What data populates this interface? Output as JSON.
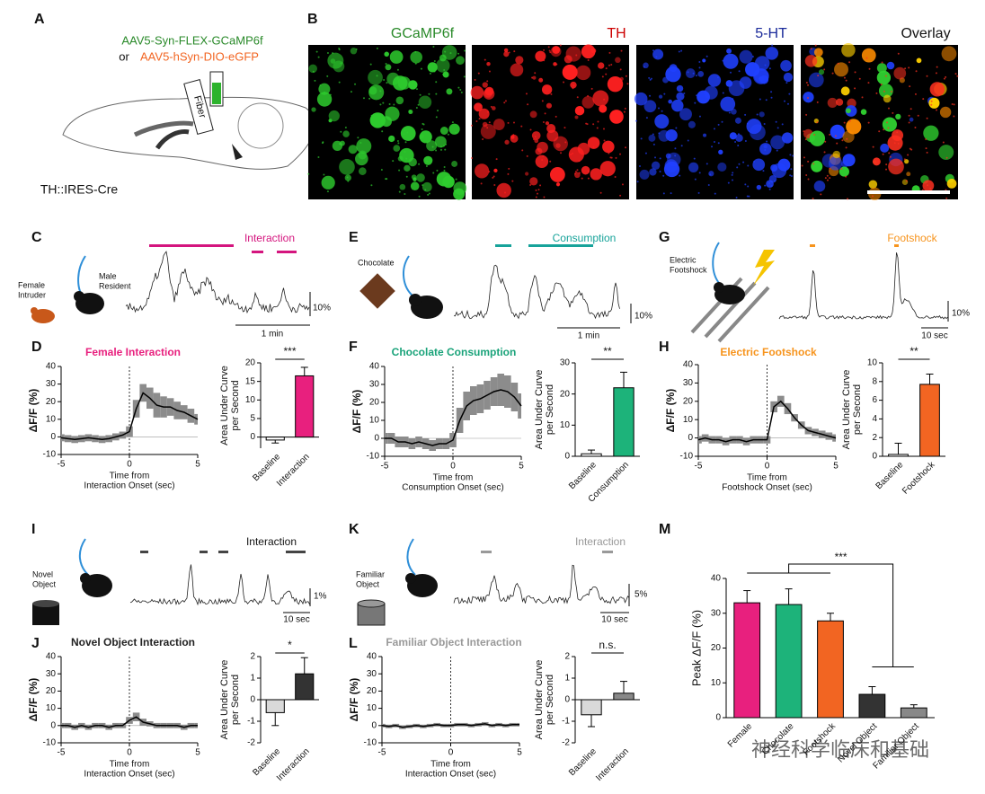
{
  "panel_labels": [
    "A",
    "B",
    "C",
    "D",
    "E",
    "F",
    "G",
    "H",
    "I",
    "J",
    "K",
    "L",
    "M"
  ],
  "panel_a": {
    "virus_1": "AAV5-Syn-FLEX-GCaMP6f",
    "or": "or",
    "virus_2": "AAV5-hSyn-DIO-eGFP",
    "fiber": "Fiber",
    "mouse_line": "TH::IRES-Cre"
  },
  "panel_b": {
    "titles": [
      "GCaMP6f",
      "TH",
      "5-HT",
      "Overlay"
    ]
  },
  "panel_c": {
    "intruder": [
      "Female",
      "Intruder"
    ],
    "resident": [
      "Male",
      "Resident"
    ],
    "event": "Interaction",
    "time_scale": "1 min",
    "amp_scale": "10%"
  },
  "panel_e": {
    "stimulus": "Chocolate",
    "event": "Consumption",
    "time_scale": "1 min",
    "amp_scale": "10%"
  },
  "panel_g": {
    "stimulus": [
      "Electric",
      "Footshock"
    ],
    "event": "Footshock",
    "time_scale": "10 sec",
    "amp_scale": "10%"
  },
  "panel_i": {
    "stimulus": [
      "Novel",
      "Object"
    ],
    "event": "Interaction",
    "time_scale": "10 sec",
    "amp_scale": "1%"
  },
  "panel_k": {
    "stimulus": [
      "Familiar",
      "Object"
    ],
    "event": "Interaction",
    "time_scale": "10 sec",
    "amp_scale": "5%"
  },
  "watermark": "神经科学临床和基础",
  "chart_data": [
    {
      "type": "line",
      "title": "Female Interaction",
      "title_color": "#e8207e",
      "xlabel": [
        "Time from",
        "Interaction Onset (sec)"
      ],
      "ylabel": "ΔF/F (%)",
      "xlim": [
        -5,
        5
      ],
      "xticks": [
        -5,
        0,
        5
      ],
      "ylim": [
        -10,
        40
      ],
      "yticks": [
        -10,
        0,
        10,
        20,
        30,
        40
      ],
      "series": [
        {
          "color": "#000000",
          "band_color": "#8c8c8c",
          "x": [
            -5,
            -4.5,
            -4,
            -3.5,
            -3,
            -2.5,
            -2,
            -1.5,
            -1,
            -0.5,
            0,
            0.5,
            1,
            1.5,
            2,
            2.5,
            3,
            3.5,
            4,
            4.5,
            5
          ],
          "values": [
            -0.5,
            -1,
            -1.5,
            -1,
            -0.5,
            -1,
            -1.5,
            -1,
            0,
            1,
            3,
            16,
            25,
            22,
            18,
            17,
            17,
            15,
            14,
            12,
            10
          ],
          "error": [
            2,
            2,
            2,
            2,
            2,
            2,
            2,
            2,
            2,
            2,
            3,
            5,
            5,
            6,
            7,
            6,
            5,
            5,
            4,
            4,
            3
          ]
        }
      ]
    },
    {
      "type": "bar",
      "ylabel": [
        "Area Under Curve",
        "per Second"
      ],
      "categories": [
        "Baseline",
        "Interaction"
      ],
      "values": [
        -0.8,
        16.5
      ],
      "error": [
        0.8,
        2.3
      ],
      "colors": [
        "#ffffff",
        "#e8207e"
      ],
      "ylim": [
        -3,
        20
      ],
      "yticks": [
        0,
        5,
        10,
        15,
        20
      ],
      "significance": "***"
    },
    {
      "type": "line",
      "title": "Chocolate Consumption",
      "title_color": "#1aa37a",
      "xlabel": [
        "Time from",
        "Consumption Onset (sec)"
      ],
      "ylabel": "ΔF/F (%)",
      "xlim": [
        -5,
        5
      ],
      "xticks": [
        -5,
        0,
        5
      ],
      "ylim": [
        -10,
        40
      ],
      "yticks": [
        -10,
        0,
        10,
        20,
        30,
        40
      ],
      "series": [
        {
          "color": "#000000",
          "band_color": "#8c8c8c",
          "x": [
            -5,
            -4.5,
            -4,
            -3.5,
            -3,
            -2.5,
            -2,
            -1.5,
            -1,
            -0.5,
            0,
            0.5,
            1,
            1.5,
            2,
            2.5,
            3,
            3.5,
            4,
            4.5,
            5
          ],
          "values": [
            0,
            0,
            -2,
            -2,
            -3,
            -2,
            -3,
            -4,
            -3,
            -3,
            -1,
            10,
            18,
            21,
            22,
            24,
            26,
            27,
            26,
            23,
            18
          ],
          "error": [
            3,
            3,
            3,
            3,
            3,
            3,
            3,
            3,
            3,
            3,
            4,
            7,
            8,
            8,
            8,
            8,
            8,
            9,
            9,
            8,
            7
          ]
        }
      ]
    },
    {
      "type": "bar",
      "ylabel": [
        "Area Under Curve",
        "per Second"
      ],
      "categories": [
        "Baseline",
        "Consumption"
      ],
      "values": [
        0.8,
        22
      ],
      "error": [
        1.2,
        5
      ],
      "colors": [
        "#ffffff",
        "#1db37a"
      ],
      "ylim": [
        0,
        30
      ],
      "yticks": [
        0,
        10,
        20,
        30
      ],
      "significance": "**"
    },
    {
      "type": "line",
      "title": "Electric Footshock",
      "title_color": "#f7941d",
      "xlabel": [
        "Time from",
        "Footshock Onset (sec)"
      ],
      "ylabel": "ΔF/F (%)",
      "xlim": [
        -5,
        5
      ],
      "xticks": [
        -5,
        0,
        5
      ],
      "ylim": [
        -10,
        40
      ],
      "yticks": [
        -10,
        0,
        10,
        20,
        30,
        40
      ],
      "series": [
        {
          "color": "#000000",
          "band_color": "#8c8c8c",
          "x": [
            -5,
            -4.5,
            -4,
            -3.5,
            -3,
            -2.5,
            -2,
            -1.5,
            -1,
            -0.5,
            0,
            0.5,
            1,
            1.5,
            2,
            2.5,
            3,
            3.5,
            4,
            4.5,
            5
          ],
          "values": [
            -1,
            0,
            -1,
            -1,
            -2,
            -1,
            -1,
            -2,
            -1,
            -1,
            -1,
            17,
            20,
            16,
            11,
            7,
            4,
            3,
            2,
            1,
            0
          ],
          "error": [
            2,
            2,
            2,
            2,
            2,
            2,
            2,
            2,
            2,
            2,
            2,
            3,
            3,
            3,
            2,
            2,
            2,
            2,
            2,
            2,
            2
          ]
        }
      ]
    },
    {
      "type": "bar",
      "ylabel": [
        "Area Under Curve",
        "per Second"
      ],
      "categories": [
        "Baseline",
        "Footshock"
      ],
      "values": [
        0.2,
        7.7
      ],
      "error": [
        1.2,
        1.1
      ],
      "colors": [
        "#ffffff",
        "#f26522"
      ],
      "ylim": [
        0,
        10
      ],
      "yticks": [
        0,
        2,
        4,
        6,
        8,
        10
      ],
      "significance": "**"
    },
    {
      "type": "line",
      "title": "Novel Object Interaction",
      "title_color": "#222222",
      "xlabel": [
        "Time from",
        "Interaction Onset (sec)"
      ],
      "ylabel": "ΔF/F (%)",
      "xlim": [
        -5,
        5
      ],
      "xticks": [
        -5,
        0,
        5
      ],
      "ylim": [
        -10,
        40
      ],
      "yticks": [
        -10,
        0,
        10,
        20,
        30,
        40
      ],
      "series": [
        {
          "color": "#000000",
          "band_color": "#8c8c8c",
          "x": [
            -5,
            -4.5,
            -4,
            -3.5,
            -3,
            -2.5,
            -2,
            -1.5,
            -1,
            -0.5,
            0,
            0.5,
            1,
            1.5,
            2,
            2.5,
            3,
            3.5,
            4,
            4.5,
            5
          ],
          "values": [
            0,
            0,
            -1,
            0,
            -1,
            0,
            0,
            -1,
            0,
            0,
            3,
            5,
            2,
            1,
            0,
            0,
            0,
            0,
            -1,
            0,
            0
          ],
          "error": [
            1.5,
            1.5,
            1.5,
            1.5,
            1.5,
            1.5,
            1.5,
            1.5,
            1.5,
            1.5,
            2,
            2.5,
            2,
            1.5,
            1.5,
            1.5,
            1.5,
            1.5,
            1.5,
            1.5,
            1.5
          ]
        }
      ]
    },
    {
      "type": "bar",
      "ylabel": [
        "Area Under Curve",
        "per Second"
      ],
      "categories": [
        "Baseline",
        "Interaction"
      ],
      "values": [
        -0.6,
        1.2
      ],
      "error": [
        0.6,
        0.75
      ],
      "colors": [
        "#d9d9d9",
        "#333333"
      ],
      "ylim": [
        -2,
        2
      ],
      "yticks": [
        -2,
        -1,
        0,
        1,
        2
      ],
      "significance": "*"
    },
    {
      "type": "line",
      "title": "Familiar Object Interaction",
      "title_color": "#999999",
      "xlabel": [
        "Time from",
        "Interaction Onset (sec)"
      ],
      "ylabel": "ΔF/F (%)",
      "xlim": [
        -5,
        5
      ],
      "xticks": [
        -5,
        0,
        5
      ],
      "ylim": [
        -10,
        40
      ],
      "yticks": [
        -10,
        0,
        10,
        20,
        30,
        40
      ],
      "series": [
        {
          "color": "#000000",
          "band_color": "#8c8c8c",
          "x": [
            -5,
            -4.5,
            -4,
            -3.5,
            -3,
            -2.5,
            -2,
            -1.5,
            -1,
            -0.5,
            0,
            0.5,
            1,
            1.5,
            2,
            2.5,
            3,
            3.5,
            4,
            4.5,
            5
          ],
          "values": [
            0,
            -0.5,
            0,
            -1,
            -0.5,
            0,
            -0.5,
            0,
            0.5,
            0,
            0,
            0.5,
            0.5,
            0,
            0.5,
            1,
            0,
            0.5,
            0,
            0.5,
            0.5
          ],
          "error": [
            1,
            1,
            1,
            1,
            1,
            1,
            1,
            1,
            1,
            1,
            1,
            1,
            1,
            1,
            1,
            1,
            1,
            1,
            1,
            1,
            1
          ]
        }
      ]
    },
    {
      "type": "bar",
      "ylabel": [
        "Area Under Curve",
        "per Second"
      ],
      "categories": [
        "Baseline",
        "Interaction"
      ],
      "values": [
        -0.7,
        0.3
      ],
      "error": [
        0.55,
        0.55
      ],
      "colors": [
        "#d9d9d9",
        "#888888"
      ],
      "ylim": [
        -2,
        2
      ],
      "yticks": [
        -2,
        -1,
        0,
        1,
        2
      ],
      "significance": "n.s."
    },
    {
      "type": "bar",
      "ylabel": "Peak ΔF/F (%)",
      "categories": [
        "Female",
        "Chocolate",
        "Footshock",
        "Novel Object",
        "Familiar Object"
      ],
      "values": [
        33,
        32.5,
        27.8,
        6.7,
        2.8
      ],
      "error": [
        3.5,
        4.5,
        2.2,
        2.2,
        0.9
      ],
      "colors": [
        "#e8207e",
        "#1db37a",
        "#f26522",
        "#333333",
        "#888888"
      ],
      "ylim": [
        0,
        40
      ],
      "yticks": [
        0,
        10,
        20,
        30,
        40
      ],
      "significance": "***"
    }
  ]
}
